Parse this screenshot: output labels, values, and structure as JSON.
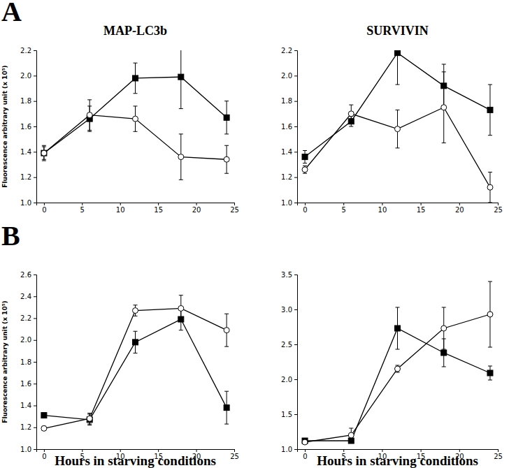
{
  "chart_data": [
    {
      "type": "line",
      "annotation": "A",
      "title": "MAP-LC3b",
      "y_label": "Fluorescence arbitrary unit (x 10⁵)",
      "x": [
        0,
        6,
        12,
        18,
        24
      ],
      "xlim": [
        -1,
        25
      ],
      "xticks": [
        0,
        5,
        10,
        15,
        20,
        25
      ],
      "ylim": [
        1.0,
        2.2
      ],
      "yticks": [
        {
          "value": 1.0,
          "label": "1.0"
        },
        1.2,
        1.4,
        1.6,
        1.8,
        {
          "value": 2.0,
          "label": "2.0"
        },
        2.2
      ],
      "series": [
        {
          "marker": "square",
          "color": "#000000",
          "values": [
            1.39,
            1.66,
            1.98,
            1.99,
            1.67
          ],
          "errors": [
            0.05,
            0.1,
            0.12,
            0.25,
            0.13
          ]
        },
        {
          "marker": "circle-open",
          "color": "#000000",
          "values": [
            1.39,
            1.69,
            1.66,
            1.36,
            1.34
          ],
          "errors": [
            0.06,
            0.12,
            0.1,
            0.18,
            0.11
          ]
        }
      ]
    },
    {
      "type": "line",
      "title": "SURVIVIN",
      "x": [
        0,
        6,
        12,
        18,
        24
      ],
      "xlim": [
        -1,
        25
      ],
      "xticks": [
        0,
        5,
        10,
        15,
        20,
        25
      ],
      "ylim": [
        1.0,
        2.2
      ],
      "yticks": [
        {
          "value": 1.0,
          "label": "1.0"
        },
        1.2,
        1.4,
        1.6,
        1.8,
        {
          "value": 2.0,
          "label": "2.0"
        },
        2.2
      ],
      "series": [
        {
          "marker": "square",
          "color": "#000000",
          "values": [
            1.36,
            1.64,
            2.18,
            1.92,
            1.73
          ],
          "errors": [
            0.05,
            0.04,
            0.25,
            0.17,
            0.2
          ]
        },
        {
          "marker": "circle-open",
          "color": "#000000",
          "values": [
            1.26,
            1.7,
            1.58,
            1.75,
            1.12
          ],
          "errors": [
            0.03,
            0.07,
            0.15,
            0.28,
            0.12
          ]
        }
      ]
    },
    {
      "type": "line",
      "annotation": "B",
      "y_label": "Fluorescence arbitrary unit (x 10⁵)",
      "x_label": "Hours in starving conditions",
      "x": [
        0,
        6,
        12,
        18,
        24
      ],
      "xlim": [
        -1,
        25
      ],
      "xticks": [
        0,
        5,
        10,
        15,
        20,
        25
      ],
      "ylim": [
        1.0,
        2.6
      ],
      "yticks": [
        {
          "value": 1.0,
          "label": "1.0"
        },
        1.2,
        1.4,
        1.6,
        1.8,
        {
          "value": 2.0,
          "label": "2.0"
        },
        2.2,
        2.4,
        2.6
      ],
      "series": [
        {
          "marker": "square",
          "color": "#000000",
          "values": [
            1.31,
            1.27,
            1.98,
            2.19,
            1.38
          ],
          "errors": [
            0.02,
            0.05,
            0.1,
            0.1,
            0.15
          ]
        },
        {
          "marker": "circle-open",
          "color": "#000000",
          "values": [
            1.19,
            1.28,
            2.27,
            2.29,
            2.09
          ],
          "errors": [
            0.02,
            0.05,
            0.05,
            0.12,
            0.15
          ]
        }
      ]
    },
    {
      "type": "line",
      "x_label": "Hours in starving conditions",
      "x": [
        0,
        6,
        12,
        18,
        24
      ],
      "xlim": [
        -1,
        25
      ],
      "xticks": [
        0,
        5,
        10,
        15,
        20,
        25
      ],
      "ylim": [
        1.0,
        3.5
      ],
      "yticks": [
        {
          "value": 1.0,
          "label": "1.0"
        },
        1.5,
        {
          "value": 2.0,
          "label": "2.0"
        },
        2.5,
        {
          "value": 3.0,
          "label": "3.0"
        },
        3.5
      ],
      "series": [
        {
          "marker": "square",
          "color": "#000000",
          "values": [
            1.12,
            1.12,
            2.73,
            2.38,
            2.09
          ],
          "errors": [
            0.02,
            0.02,
            0.3,
            0.2,
            0.1
          ]
        },
        {
          "marker": "circle-open",
          "color": "#000000",
          "values": [
            1.1,
            1.2,
            2.15,
            2.73,
            2.93
          ],
          "errors": [
            0.02,
            0.1,
            0.05,
            0.3,
            0.47
          ]
        }
      ]
    }
  ]
}
